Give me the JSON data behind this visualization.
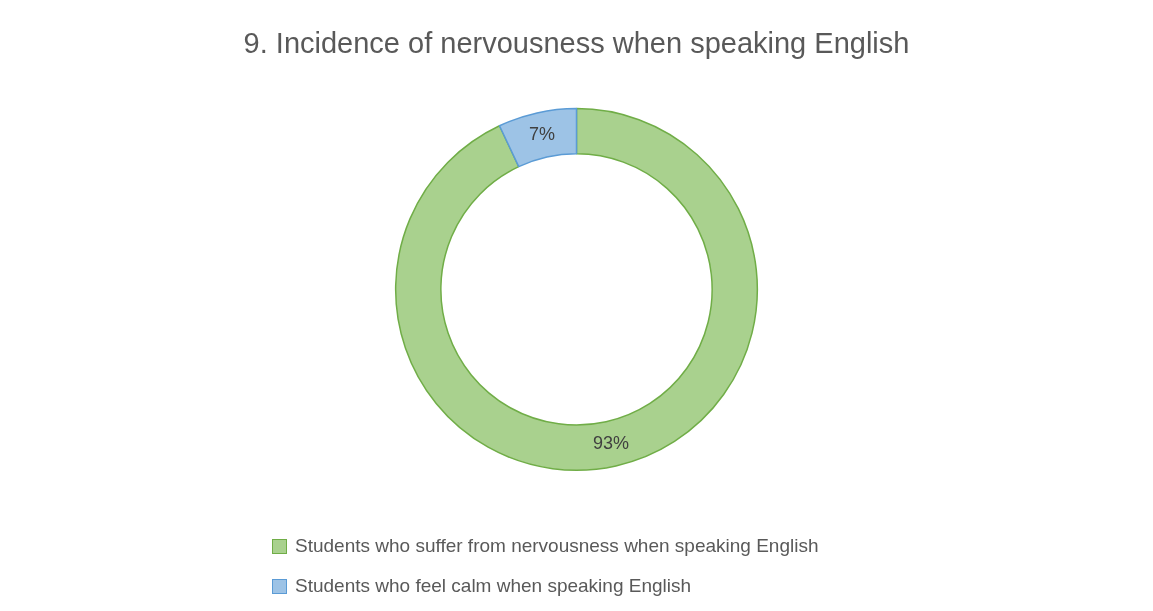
{
  "chart_data": {
    "type": "donut",
    "title": "9. Incidence of nervousness when speaking English",
    "categories": [
      "Students who suffer from nervousness when speaking English",
      "Students who feel calm when speaking English"
    ],
    "values": [
      93,
      7
    ],
    "colors": [
      "#a9d18e",
      "#9dc3e6"
    ],
    "value_labels": [
      "93%",
      "7%"
    ],
    "legend": "bottom"
  }
}
